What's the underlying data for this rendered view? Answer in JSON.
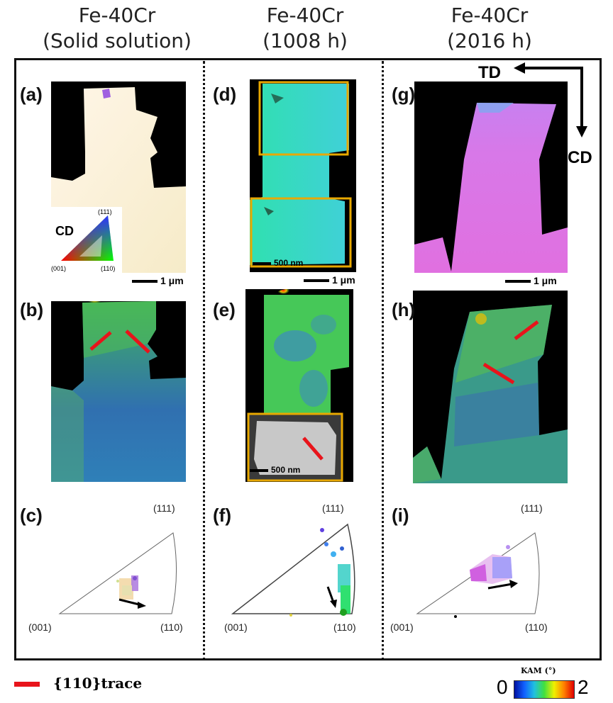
{
  "columns": [
    {
      "line1": "Fe-40Cr",
      "line2": "(Solid solution)"
    },
    {
      "line1": "Fe-40Cr",
      "line2": "(1008 h)"
    },
    {
      "line1": "Fe-40Cr",
      "line2": "(2016 h)"
    }
  ],
  "panels": [
    "(a)",
    "(b)",
    "(c)",
    "(d)",
    "(e)",
    "(f)",
    "(g)",
    "(h)",
    "(i)"
  ],
  "axes": {
    "td": "TD",
    "cd": "CD"
  },
  "scalebars": {
    "um1": "1 μm",
    "nm500": "500 nm"
  },
  "ipf_key": {
    "title": "CD",
    "p111": "(111)",
    "p001": "(001)",
    "p110": "(110)"
  },
  "ipf": {
    "p111": "(111)",
    "p001": "(001)",
    "p110": "(110)"
  },
  "legend": {
    "trace_label": "{110}trace",
    "kam_title": "KAM (°)",
    "kam_min": "0",
    "kam_max": "2",
    "trace_color": "#e8141b"
  }
}
